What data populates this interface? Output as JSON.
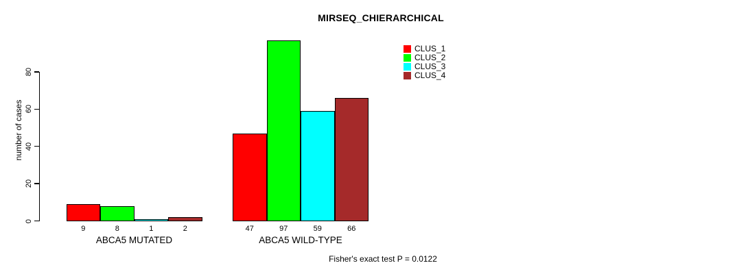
{
  "title": "MIRSEQ_CHIERARCHICAL",
  "footer": "Fisher's exact test P = 0.0122",
  "chart_data": {
    "type": "bar",
    "title": "MIRSEQ_CHIERARCHICAL",
    "xlabel": "",
    "ylabel": "number of cases",
    "ylim": [
      0,
      80
    ],
    "yticks": [
      0,
      20,
      40,
      60,
      80
    ],
    "grid": false,
    "legend_position": "top-right",
    "legend": [
      {
        "label": "CLUS_1",
        "color": "#FF0000"
      },
      {
        "label": "CLUS_2",
        "color": "#00FF00"
      },
      {
        "label": "CLUS_3",
        "color": "#00FFFF"
      },
      {
        "label": "CLUS_4",
        "color": "#A52A2A"
      }
    ],
    "categories": [
      "ABCA5 MUTATED",
      "ABCA5 WILD-TYPE"
    ],
    "series": [
      {
        "name": "CLUS_1",
        "color": "#FF0000",
        "values": [
          9,
          47
        ]
      },
      {
        "name": "CLUS_2",
        "color": "#00FF00",
        "values": [
          8,
          97
        ]
      },
      {
        "name": "CLUS_3",
        "color": "#00FFFF",
        "values": [
          1,
          59
        ]
      },
      {
        "name": "CLUS_4",
        "color": "#A52A2A",
        "values": [
          2,
          66
        ]
      }
    ],
    "bar_value_labels": [
      [
        "9",
        "8",
        "1",
        "2"
      ],
      [
        "47",
        "97",
        "59",
        "66"
      ]
    ],
    "annotation": "Fisher's exact test P = 0.0122"
  }
}
